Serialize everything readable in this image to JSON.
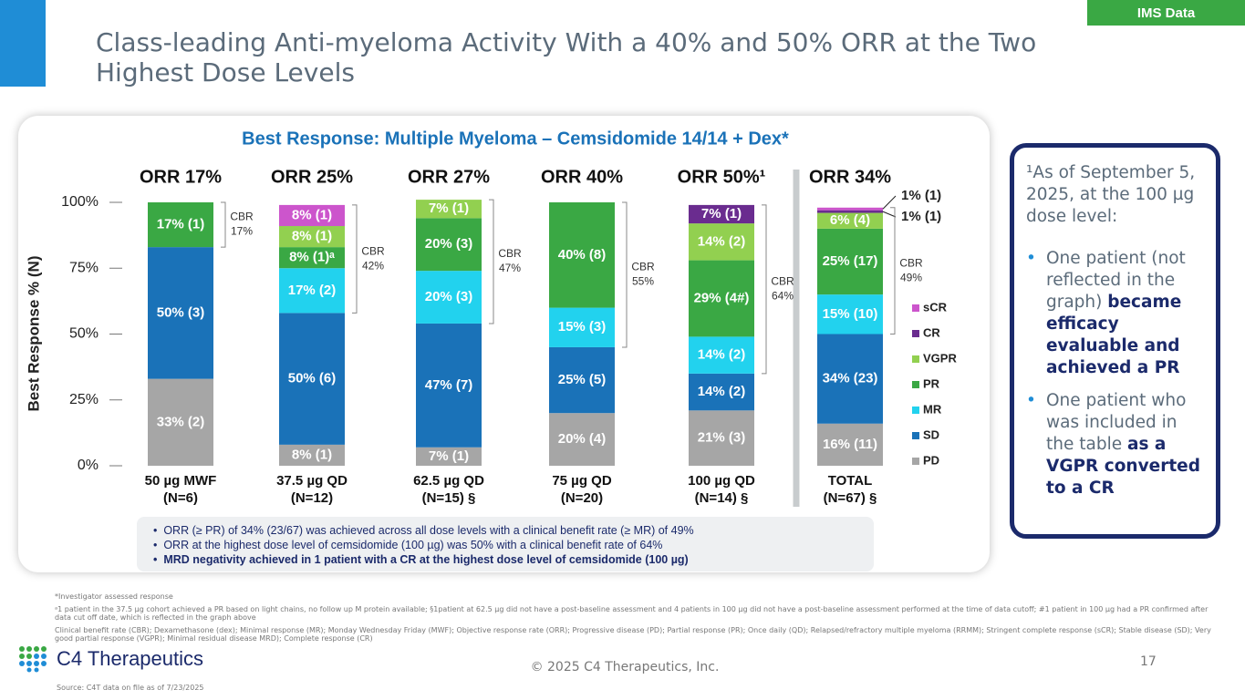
{
  "slide_title": "Class-leading Anti-myeloma Activity With a 40% and 50% ORR at the Two Highest Dose Levels",
  "tag": "IMS Data",
  "chart_data": {
    "type": "stacked_bar",
    "title": "Best Response: Multiple Myeloma – Cemsidomide 14/14 + Dex*",
    "y_label": "Best Response % (N)",
    "categories": [
      "50 µg MWF",
      "37.5 µg QD",
      "62.5 µg QD",
      "75 µg QD",
      "100 µg QD",
      "TOTAL"
    ],
    "category_n": [
      "(N=6)",
      "(N=12)",
      "(N=15) §",
      "(N=20)",
      "(N=14) §",
      "(N=67) §"
    ],
    "orr_labels": [
      "ORR 17%",
      "ORR 25%",
      "ORR 27%",
      "ORR 40%",
      "ORR 50%¹",
      "ORR 34%"
    ],
    "cbr_title": "CBR",
    "cbr_labels": [
      "17%",
      "42%",
      "47%",
      "55%",
      "64%",
      "49%"
    ],
    "ylim": [
      0,
      100
    ],
    "yticks": [
      {
        "value": 0,
        "label": "0%"
      },
      {
        "value": 25,
        "label": "25%"
      },
      {
        "value": 50,
        "label": "50%"
      },
      {
        "value": 75,
        "label": "75%"
      },
      {
        "value": 100,
        "label": "100%"
      }
    ],
    "grid": false,
    "legend": "right",
    "series": [
      {
        "name": "PD",
        "color": "#a6a6a6",
        "values": [
          33,
          8,
          7,
          20,
          21,
          16
        ],
        "value_labels": [
          "33% (2)",
          "8% (1)",
          "7% (1)",
          "20% (4)",
          "21% (3)",
          "16% (11)"
        ]
      },
      {
        "name": "SD",
        "color": "#1a72b8",
        "values": [
          50,
          50,
          47,
          25,
          14,
          34
        ],
        "value_labels": [
          "50% (3)",
          "50% (6)",
          "47% (7)",
          "25% (5)",
          "14% (2)",
          "34% (23)"
        ]
      },
      {
        "name": "MR",
        "color": "#22d2ee",
        "values": [
          0,
          17,
          20,
          15,
          14,
          15
        ],
        "value_labels": [
          null,
          "17% (2)",
          "20% (3)",
          "15% (3)",
          "14% (2)",
          "15% (10)"
        ]
      },
      {
        "name": "PR",
        "color": "#3aa844",
        "values": [
          17,
          8,
          20,
          40,
          29,
          25
        ],
        "value_labels": [
          "17% (1)",
          "8% (1)ᵃ",
          "20% (3)",
          "40% (8)",
          "29% (4#)",
          "25% (17)"
        ]
      },
      {
        "name": "VGPR",
        "color": "#92d050",
        "values": [
          0,
          8,
          7,
          0,
          14,
          6
        ],
        "value_labels": [
          null,
          "8% (1)",
          "7% (1)",
          null,
          "14% (2)",
          "6% (4)"
        ]
      },
      {
        "name": "CR",
        "color": "#6a2c8f",
        "values": [
          0,
          0,
          0,
          0,
          7,
          1
        ],
        "value_labels": [
          null,
          null,
          null,
          null,
          "7% (1)",
          "1% (1)"
        ]
      },
      {
        "name": "sCR",
        "color": "#cc55cc",
        "values": [
          0,
          8,
          0,
          0,
          0,
          1
        ],
        "value_labels": [
          null,
          "8% (1)",
          null,
          null,
          null,
          "1% (1)"
        ]
      }
    ],
    "bullets": [
      "ORR (≥ PR) of 34% (23/67) was achieved across all dose levels with a clinical benefit rate (≥ MR) of 49%",
      "ORR at the highest dose level of cemsidomide (100 µg) was 50% with a clinical benefit rate of 64%",
      "MRD negativity achieved in 1 patient with a CR at the highest dose level of cemsidomide (100 µg)"
    ]
  },
  "sidebar": {
    "note": "¹As of September 5, 2025, at the 100 µg dose level:",
    "bullets": [
      {
        "text": "One patient (not reflected in the graph)",
        "bold": "became efficacy evaluable and achieved a PR"
      },
      {
        "text": "One patient who was included in the table",
        "bold": "as a VGPR converted to a CR"
      }
    ]
  },
  "footnotes": [
    "*Investigator assessed response",
    "ᵃ1 patient in the 37.5 µg cohort achieved a PR based on light chains, no follow up M protein available; §1patient at 62.5 µg did not have a post-baseline assessment and 4 patients in 100 µg did not have a post-baseline assessment performed at the time of data cutoff; #1 patient in 100 µg had a PR confirmed after data cut off date, which is reflected in the graph above",
    "Clinical benefit rate (CBR); Dexamethasone (dex); Minimal response (MR); Monday Wednesday Friday (MWF); Objective response rate (ORR); Progressive disease (PD); Partial response (PR); Once daily (QD); Relapsed/refractory multiple myeloma (RRMM); Stringent complete response (sCR); Stable disease (SD); Very good partial response (VGPR); Minimal residual disease MRD); Complete response (CR)"
  ],
  "logo": "C4 Therapeutics",
  "copyright": "© 2025 C4 Therapeutics, Inc.",
  "page_number": "17",
  "source": "Source: C4T data on file as of 7/23/2025"
}
